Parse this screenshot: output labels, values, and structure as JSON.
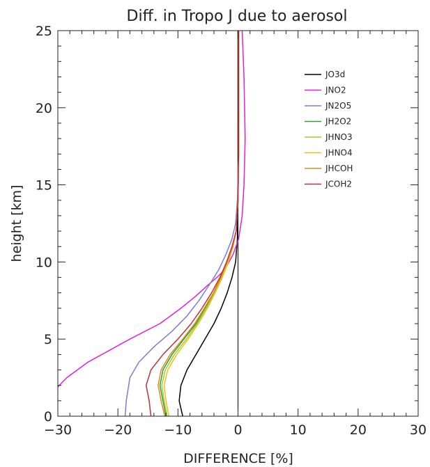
{
  "chart_data": {
    "type": "line",
    "title": "Diff. in Tropo J due to aerosol",
    "xlabel": "DIFFERENCE [%]",
    "ylabel": "height [km]",
    "xlim": [
      -30,
      30
    ],
    "ylim": [
      0,
      25
    ],
    "xticks": [
      -30,
      -20,
      -10,
      0,
      10,
      20,
      30
    ],
    "yticks": [
      0,
      5,
      10,
      15,
      20,
      25
    ],
    "grid": false,
    "legend_position": "top-right",
    "vertical_reference_line": 0,
    "series": [
      {
        "name": "JO3d",
        "color": "#000000",
        "x": [
          -9.2,
          -9.5,
          -9.8,
          -9.5,
          -8.5,
          -7.0,
          -5.5,
          -4.0,
          -2.8,
          -1.8,
          -1.0,
          -0.4,
          -0.1,
          0.0,
          0.0
        ],
        "y": [
          0.0,
          0.5,
          1.0,
          2.0,
          3.0,
          4.0,
          5.0,
          6.0,
          7.0,
          8.0,
          9.0,
          10.0,
          11.5,
          14.0,
          25.0
        ]
      },
      {
        "name": "JNO2",
        "color": "#e01ee0",
        "x": [
          -31.0,
          -28.5,
          -25.0,
          -18.0,
          -13.0,
          -9.5,
          -7.0,
          -5.0,
          -3.5,
          -2.2,
          -0.8,
          0.1,
          0.7,
          1.0,
          1.2,
          1.0,
          0.7
        ],
        "y": [
          1.5,
          2.5,
          3.5,
          5.0,
          6.0,
          7.0,
          7.8,
          8.5,
          9.0,
          9.5,
          10.5,
          11.5,
          13.0,
          15.0,
          18.0,
          22.0,
          25.0
        ]
      },
      {
        "name": "JN2O5",
        "color": "#7a7ae0",
        "x": [
          -18.8,
          -18.6,
          -18.0,
          -16.5,
          -14.0,
          -11.0,
          -8.5,
          -6.5,
          -4.8,
          -3.2,
          -2.0,
          -1.0,
          -0.4,
          -0.1,
          0.1,
          0.1
        ],
        "y": [
          0.0,
          1.0,
          2.5,
          3.5,
          4.5,
          5.5,
          6.5,
          7.5,
          8.5,
          9.5,
          10.5,
          11.5,
          12.5,
          14.0,
          17.0,
          25.0
        ]
      },
      {
        "name": "JH2O2",
        "color": "#2ca02c",
        "x": [
          -12.0,
          -12.5,
          -13.0,
          -12.5,
          -11.0,
          -9.0,
          -7.0,
          -5.5,
          -4.0,
          -2.8,
          -1.8,
          -0.9,
          -0.3,
          0.0,
          0.1,
          0.1
        ],
        "y": [
          0.0,
          1.0,
          2.0,
          3.0,
          4.0,
          5.0,
          6.0,
          7.0,
          8.0,
          9.0,
          10.0,
          11.0,
          12.0,
          14.0,
          17.0,
          25.0
        ]
      },
      {
        "name": "JHNO3",
        "color": "#9acd32",
        "x": [
          -11.8,
          -12.3,
          -12.7,
          -12.1,
          -10.6,
          -8.6,
          -6.8,
          -5.3,
          -3.9,
          -2.7,
          -1.7,
          -0.9,
          -0.3,
          0.0,
          0.1,
          0.1
        ],
        "y": [
          0.0,
          1.0,
          2.0,
          3.0,
          4.0,
          5.0,
          6.0,
          7.0,
          8.0,
          9.0,
          10.0,
          11.0,
          12.0,
          14.0,
          17.0,
          25.0
        ]
      },
      {
        "name": "JHNO4",
        "color": "#f0c010",
        "x": [
          -11.5,
          -12.0,
          -12.3,
          -11.7,
          -10.2,
          -8.3,
          -6.6,
          -5.1,
          -3.8,
          -2.6,
          -1.6,
          -0.8,
          -0.3,
          0.0,
          0.1,
          0.1
        ],
        "y": [
          0.0,
          1.0,
          2.0,
          3.0,
          4.0,
          5.0,
          6.0,
          7.0,
          8.0,
          9.0,
          10.0,
          11.0,
          12.0,
          14.0,
          17.0,
          25.0
        ]
      },
      {
        "name": "JHCOH",
        "color": "#e08a1e",
        "x": [
          -12.2,
          -12.8,
          -13.3,
          -12.8,
          -11.3,
          -9.2,
          -7.2,
          -5.6,
          -4.1,
          -2.9,
          -1.8,
          -0.9,
          -0.3,
          0.0,
          0.1,
          0.1
        ],
        "y": [
          0.0,
          1.0,
          2.0,
          3.0,
          4.0,
          5.0,
          6.0,
          7.0,
          8.0,
          9.0,
          10.0,
          11.0,
          12.0,
          14.0,
          17.0,
          25.0
        ]
      },
      {
        "name": "JCOH2",
        "color": "#c0303c",
        "x": [
          -14.5,
          -14.8,
          -15.3,
          -14.5,
          -12.5,
          -10.0,
          -7.8,
          -6.0,
          -4.4,
          -3.0,
          -1.9,
          -1.0,
          -0.3,
          0.0,
          0.1,
          0.1
        ],
        "y": [
          0.0,
          1.0,
          2.0,
          3.0,
          4.0,
          5.0,
          6.0,
          7.0,
          8.0,
          9.0,
          10.0,
          11.0,
          12.0,
          14.0,
          17.0,
          25.0
        ]
      }
    ]
  }
}
